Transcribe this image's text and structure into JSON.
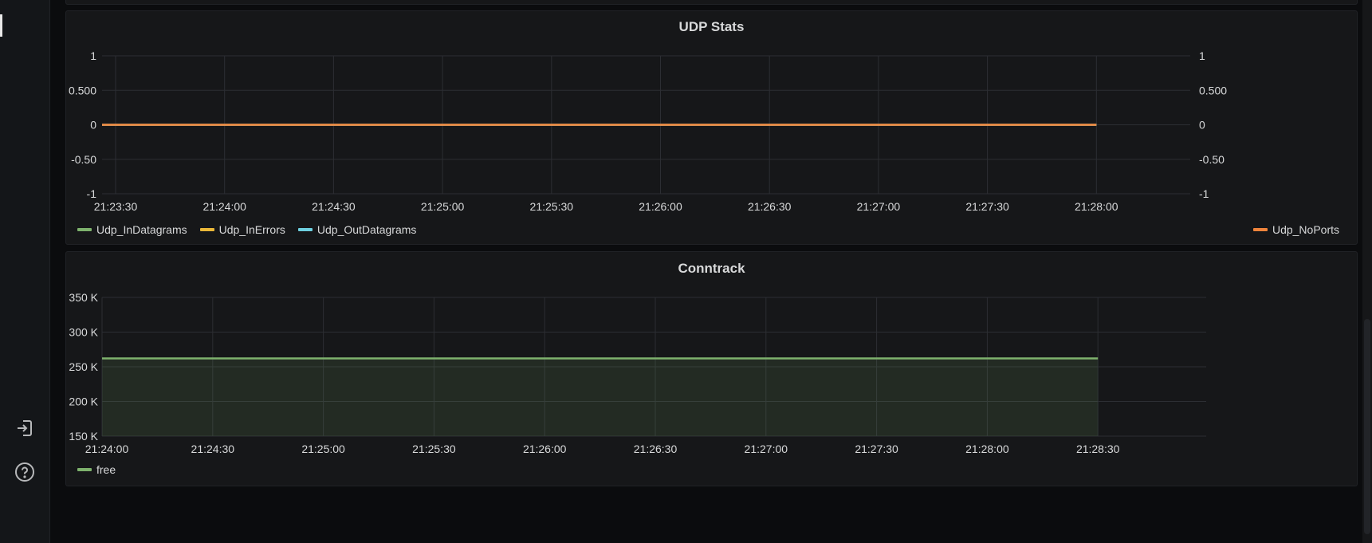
{
  "panels": {
    "udp": {
      "title": "UDP Stats",
      "legend_left": [
        {
          "name": "Udp_InDatagrams",
          "color": "#7eb26d"
        },
        {
          "name": "Udp_InErrors",
          "color": "#eab839"
        },
        {
          "name": "Udp_OutDatagrams",
          "color": "#6ed0e0"
        }
      ],
      "legend_right": [
        {
          "name": "Udp_NoPorts",
          "color": "#ef843c"
        }
      ]
    },
    "conntrack": {
      "title": "Conntrack",
      "legend": [
        {
          "name": "free",
          "color": "#7eb26d"
        }
      ]
    }
  },
  "chart_data": [
    {
      "type": "line",
      "title": "UDP Stats",
      "x": [
        "21:23:30",
        "21:24:00",
        "21:24:30",
        "21:25:00",
        "21:25:30",
        "21:26:00",
        "21:26:30",
        "21:27:00",
        "21:27:30",
        "21:28:00"
      ],
      "y_ticks": [
        "1",
        "0.500",
        "0",
        "-0.50",
        "-1"
      ],
      "ylim": [
        -1,
        1
      ],
      "series": [
        {
          "name": "Udp_InDatagrams",
          "color": "#7eb26d",
          "axis": "left",
          "values": [
            0,
            0,
            0,
            0,
            0,
            0,
            0,
            0,
            0,
            0
          ]
        },
        {
          "name": "Udp_InErrors",
          "color": "#eab839",
          "axis": "left",
          "values": [
            0,
            0,
            0,
            0,
            0,
            0,
            0,
            0,
            0,
            0
          ]
        },
        {
          "name": "Udp_OutDatagrams",
          "color": "#6ed0e0",
          "axis": "left",
          "values": [
            0,
            0,
            0,
            0,
            0,
            0,
            0,
            0,
            0,
            0
          ]
        },
        {
          "name": "Udp_NoPorts",
          "color": "#ef843c",
          "axis": "right",
          "values": [
            0,
            0,
            0,
            0,
            0,
            0,
            0,
            0,
            0,
            0
          ]
        }
      ],
      "grid": true,
      "legend": "bottom"
    },
    {
      "type": "area",
      "title": "Conntrack",
      "x": [
        "21:24:00",
        "21:24:30",
        "21:25:00",
        "21:25:30",
        "21:26:00",
        "21:26:30",
        "21:27:00",
        "21:27:30",
        "21:28:00",
        "21:28:30"
      ],
      "y_ticks": [
        "350 K",
        "300 K",
        "250 K",
        "200 K",
        "150 K"
      ],
      "ylim": [
        150000,
        350000
      ],
      "series": [
        {
          "name": "free",
          "color": "#7eb26d",
          "values": [
            262000,
            262000,
            262000,
            262000,
            262000,
            262000,
            262000,
            262000,
            262000,
            262000
          ]
        }
      ],
      "grid": true,
      "legend": "bottom-left"
    }
  ],
  "icons": {
    "signin": "sign-in-icon",
    "help": "help-circle-icon"
  }
}
